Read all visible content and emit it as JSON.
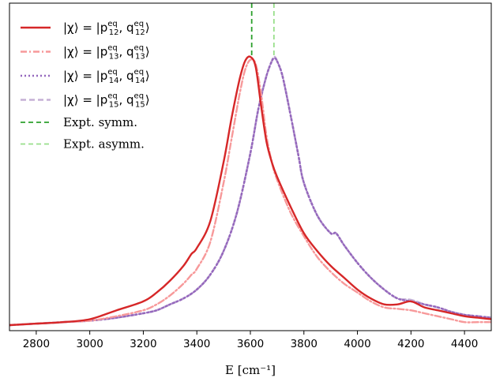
{
  "chart_data": {
    "type": "line",
    "title": "",
    "xlabel": "E [cm⁻¹]",
    "ylabel": "",
    "xlim": [
      2700,
      4500
    ],
    "ylim": [
      0,
      1.0
    ],
    "x_ticks": [
      2800,
      3000,
      3200,
      3400,
      3600,
      3800,
      4000,
      4200,
      4400
    ],
    "x_tick_labels": [
      "2800",
      "3000",
      "3200",
      "3400",
      "3600",
      "3800",
      "4000",
      "4200",
      "4400"
    ],
    "y_ticks_shown": false,
    "grid": false,
    "legend_position": "top-left",
    "series": [
      {
        "name": "|χ⟩ = |p12eq, q12eq⟩",
        "name_parts": {
          "left": "|χ⟩ = |p",
          "sup1": "eq",
          "sub1": "12",
          "mid": ", q",
          "sup2": "eq",
          "sub2": "12",
          "right": "⟩"
        },
        "color": "#d62728",
        "style": "solid",
        "x": [
          2700,
          2800,
          2900,
          3000,
          3100,
          3200,
          3250,
          3300,
          3350,
          3380,
          3400,
          3450,
          3500,
          3530,
          3560,
          3580,
          3600,
          3620,
          3640,
          3660,
          3680,
          3700,
          3750,
          3800,
          3850,
          3900,
          3950,
          4000,
          4050,
          4100,
          4150,
          4200,
          4250,
          4300,
          4350,
          4400,
          4450,
          4500
        ],
        "y": [
          0.0,
          0.005,
          0.01,
          0.02,
          0.05,
          0.08,
          0.11,
          0.15,
          0.2,
          0.24,
          0.26,
          0.35,
          0.55,
          0.7,
          0.83,
          0.89,
          0.905,
          0.87,
          0.74,
          0.62,
          0.55,
          0.5,
          0.4,
          0.31,
          0.25,
          0.2,
          0.16,
          0.12,
          0.09,
          0.07,
          0.07,
          0.08,
          0.06,
          0.05,
          0.04,
          0.03,
          0.025,
          0.02
        ]
      },
      {
        "name": "|χ⟩ = |p13eq, q13eq⟩",
        "name_parts": {
          "left": "|χ⟩ = |p",
          "sup1": "eq",
          "sub1": "13",
          "mid": ", q",
          "sup2": "eq",
          "sub2": "13",
          "right": "⟩"
        },
        "color": "#f7999a",
        "style": "dashdot",
        "x": [
          2700,
          2800,
          2900,
          3000,
          3100,
          3200,
          3250,
          3300,
          3350,
          3380,
          3400,
          3450,
          3500,
          3530,
          3560,
          3580,
          3600,
          3620,
          3640,
          3660,
          3680,
          3700,
          3750,
          3800,
          3850,
          3900,
          3950,
          4000,
          4050,
          4100,
          4150,
          4200,
          4250,
          4300,
          4350,
          4400,
          4450,
          4500
        ],
        "y": [
          0.0,
          0.005,
          0.01,
          0.015,
          0.03,
          0.05,
          0.07,
          0.1,
          0.14,
          0.17,
          0.19,
          0.28,
          0.48,
          0.63,
          0.78,
          0.86,
          0.895,
          0.88,
          0.78,
          0.64,
          0.55,
          0.49,
          0.38,
          0.3,
          0.23,
          0.18,
          0.14,
          0.11,
          0.08,
          0.06,
          0.055,
          0.05,
          0.04,
          0.03,
          0.02,
          0.01,
          0.01,
          0.01
        ]
      },
      {
        "name": "|χ⟩ = |p14eq, q14eq⟩",
        "name_parts": {
          "left": "|χ⟩ = |p",
          "sup1": "eq",
          "sub1": "14",
          "mid": ", q",
          "sup2": "eq",
          "sub2": "14",
          "right": "⟩"
        },
        "color": "#9467bd",
        "style": "dotted",
        "x": [
          2700,
          2800,
          2900,
          3000,
          3100,
          3200,
          3250,
          3300,
          3350,
          3400,
          3450,
          3500,
          3550,
          3600,
          3630,
          3660,
          3680,
          3690,
          3700,
          3720,
          3750,
          3780,
          3800,
          3850,
          3900,
          3920,
          3950,
          4000,
          4050,
          4100,
          4150,
          4200,
          4250,
          4300,
          4350,
          4400,
          4450,
          4500
        ],
        "y": [
          0.0,
          0.005,
          0.01,
          0.015,
          0.025,
          0.04,
          0.05,
          0.07,
          0.09,
          0.12,
          0.17,
          0.25,
          0.38,
          0.58,
          0.73,
          0.84,
          0.89,
          0.9,
          0.89,
          0.84,
          0.71,
          0.57,
          0.48,
          0.37,
          0.31,
          0.31,
          0.27,
          0.21,
          0.16,
          0.12,
          0.09,
          0.08,
          0.07,
          0.06,
          0.045,
          0.035,
          0.03,
          0.025
        ]
      },
      {
        "name": "|χ⟩ = |p15eq, q15eq⟩",
        "name_parts": {
          "left": "|χ⟩ = |p",
          "sup1": "eq",
          "sub1": "15",
          "mid": ", q",
          "sup2": "eq",
          "sub2": "15",
          "right": "⟩"
        },
        "color": "#c5b0d5",
        "style": "dashed",
        "x": [
          2700,
          2800,
          2900,
          3000,
          3100,
          3200,
          3250,
          3300,
          3350,
          3400,
          3450,
          3500,
          3550,
          3600,
          3630,
          3660,
          3680,
          3690,
          3700,
          3720,
          3750,
          3780,
          3800,
          3850,
          3900,
          3920,
          3950,
          4000,
          4050,
          4100,
          4150,
          4200,
          4250,
          4300,
          4350,
          4400,
          4450,
          4500
        ],
        "y": [
          0.0,
          0.005,
          0.01,
          0.015,
          0.025,
          0.04,
          0.05,
          0.07,
          0.09,
          0.12,
          0.17,
          0.25,
          0.38,
          0.58,
          0.73,
          0.84,
          0.89,
          0.905,
          0.89,
          0.84,
          0.71,
          0.57,
          0.48,
          0.37,
          0.31,
          0.31,
          0.27,
          0.21,
          0.16,
          0.12,
          0.09,
          0.085,
          0.07,
          0.06,
          0.045,
          0.035,
          0.03,
          0.025
        ]
      },
      {
        "name": "Expt. symm.",
        "color": "#2ca02c",
        "style": "dashed",
        "vline_x": 3605
      },
      {
        "name": "Expt. asymm.",
        "color": "#98df8a",
        "style": "dashed",
        "vline_x": 3688
      }
    ]
  }
}
